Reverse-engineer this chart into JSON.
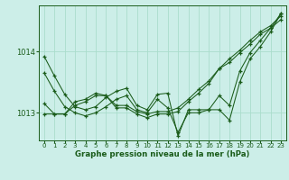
{
  "xlabel": "Graphe pression niveau de la mer (hPa)",
  "background_color": "#cceee8",
  "line_color": "#1a5c1a",
  "grid_color": "#aaddcc",
  "ytick_labels": [
    "1013",
    "1014"
  ],
  "ytick_vals": [
    1013.0,
    1014.0
  ],
  "ylim": [
    1012.55,
    1014.75
  ],
  "xlim": [
    -0.5,
    23.5
  ],
  "xticks": [
    0,
    1,
    2,
    3,
    4,
    5,
    6,
    7,
    8,
    9,
    10,
    11,
    12,
    13,
    14,
    15,
    16,
    17,
    18,
    19,
    20,
    21,
    22,
    23
  ],
  "line1": [
    1013.92,
    1013.6,
    1013.3,
    1013.1,
    1013.05,
    1013.1,
    1013.25,
    1013.35,
    1013.4,
    1013.12,
    1013.05,
    1013.3,
    1013.32,
    1012.62,
    1013.05,
    1013.05,
    1013.05,
    1013.05,
    1012.88,
    1013.5,
    1013.88,
    1014.08,
    1014.32,
    1014.62
  ],
  "line2": [
    1013.65,
    1013.35,
    1013.1,
    1013.0,
    1012.95,
    1013.0,
    1013.1,
    1013.22,
    1013.28,
    1013.05,
    1013.0,
    1013.22,
    1013.08,
    1012.68,
    1013.0,
    1013.0,
    1013.05,
    1013.28,
    1013.12,
    1013.68,
    1013.98,
    1014.18,
    1014.38,
    1014.62
  ],
  "line3": [
    1013.15,
    1012.98,
    1012.98,
    1013.18,
    1013.22,
    1013.32,
    1013.28,
    1013.12,
    1013.12,
    1013.02,
    1012.98,
    1013.02,
    1013.02,
    1013.08,
    1013.22,
    1013.38,
    1013.52,
    1013.72,
    1013.88,
    1014.02,
    1014.18,
    1014.32,
    1014.42,
    1014.58
  ],
  "line4": [
    1012.98,
    1012.98,
    1012.98,
    1013.12,
    1013.18,
    1013.28,
    1013.28,
    1013.08,
    1013.08,
    1012.98,
    1012.92,
    1012.98,
    1012.98,
    1013.02,
    1013.18,
    1013.32,
    1013.48,
    1013.72,
    1013.82,
    1013.98,
    1014.12,
    1014.28,
    1014.38,
    1014.52
  ]
}
